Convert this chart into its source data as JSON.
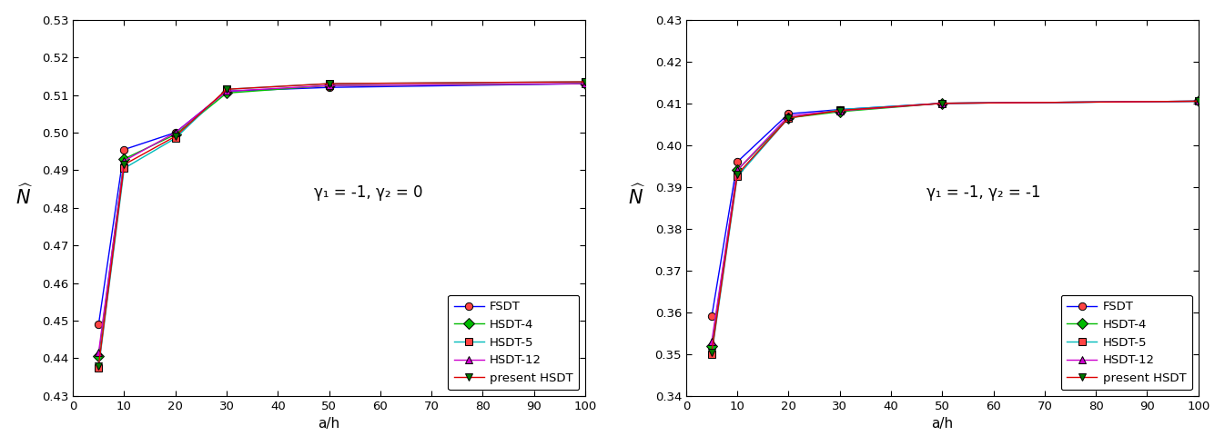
{
  "x": [
    5,
    10,
    20,
    30,
    50,
    100
  ],
  "plot1": {
    "annotation": "γ₁ = -1, γ₂ = 0",
    "ylim": [
      0.43,
      0.53
    ],
    "yticks": [
      0.43,
      0.44,
      0.45,
      0.46,
      0.47,
      0.48,
      0.49,
      0.5,
      0.51,
      0.52,
      0.53
    ],
    "series": {
      "FSDT": {
        "color": "#0000FF",
        "marker": "o",
        "markerfc": "#FF4444",
        "markerec": "#000000",
        "values": [
          0.449,
          0.4955,
          0.5,
          0.511,
          0.512,
          0.513
        ]
      },
      "HSDT-4": {
        "color": "#00BB00",
        "marker": "D",
        "markerfc": "#00BB00",
        "markerec": "#000000",
        "values": [
          0.4405,
          0.493,
          0.4995,
          0.5105,
          0.5125,
          0.513
        ]
      },
      "HSDT-5": {
        "color": "#00BBBB",
        "marker": "s",
        "markerfc": "#FF4444",
        "markerec": "#000000",
        "values": [
          0.4375,
          0.4905,
          0.4985,
          0.5115,
          0.513,
          0.5135
        ]
      },
      "HSDT-12": {
        "color": "#CC00CC",
        "marker": "^",
        "markerfc": "#CC00CC",
        "markerec": "#000000",
        "values": [
          0.4415,
          0.4925,
          0.5,
          0.511,
          0.5125,
          0.513
        ]
      },
      "present HSDT": {
        "color": "#DD0000",
        "marker": "v",
        "markerfc": "#007700",
        "markerec": "#000000",
        "values": [
          0.438,
          0.4915,
          0.499,
          0.5115,
          0.513,
          0.5135
        ]
      }
    }
  },
  "plot2": {
    "annotation": "γ₁ = -1, γ₂ = -1",
    "ylim": [
      0.34,
      0.43
    ],
    "yticks": [
      0.34,
      0.35,
      0.36,
      0.37,
      0.38,
      0.39,
      0.4,
      0.41,
      0.42,
      0.43
    ],
    "series": {
      "FSDT": {
        "color": "#0000FF",
        "marker": "o",
        "markerfc": "#FF4444",
        "markerec": "#000000",
        "values": [
          0.359,
          0.396,
          0.4075,
          0.4085,
          0.41,
          0.4105
        ]
      },
      "HSDT-4": {
        "color": "#00BB00",
        "marker": "D",
        "markerfc": "#00BB00",
        "markerec": "#000000",
        "values": [
          0.352,
          0.394,
          0.4065,
          0.408,
          0.41,
          0.4105
        ]
      },
      "HSDT-5": {
        "color": "#00BBBB",
        "marker": "s",
        "markerfc": "#FF4444",
        "markerec": "#000000",
        "values": [
          0.35,
          0.3925,
          0.4065,
          0.4085,
          0.41,
          0.4105
        ]
      },
      "HSDT-12": {
        "color": "#CC00CC",
        "marker": "^",
        "markerfc": "#CC00CC",
        "markerec": "#000000",
        "values": [
          0.353,
          0.394,
          0.407,
          0.4082,
          0.41,
          0.4105
        ]
      },
      "present HSDT": {
        "color": "#DD0000",
        "marker": "v",
        "markerfc": "#007700",
        "markerec": "#000000",
        "values": [
          0.3505,
          0.393,
          0.4065,
          0.4083,
          0.41,
          0.4105
        ]
      }
    }
  },
  "xlabel": "a/h",
  "ylabel": "$\\widehat{N}$",
  "xlim": [
    0,
    100
  ],
  "xticks": [
    0,
    10,
    20,
    30,
    40,
    50,
    60,
    70,
    80,
    90,
    100
  ]
}
